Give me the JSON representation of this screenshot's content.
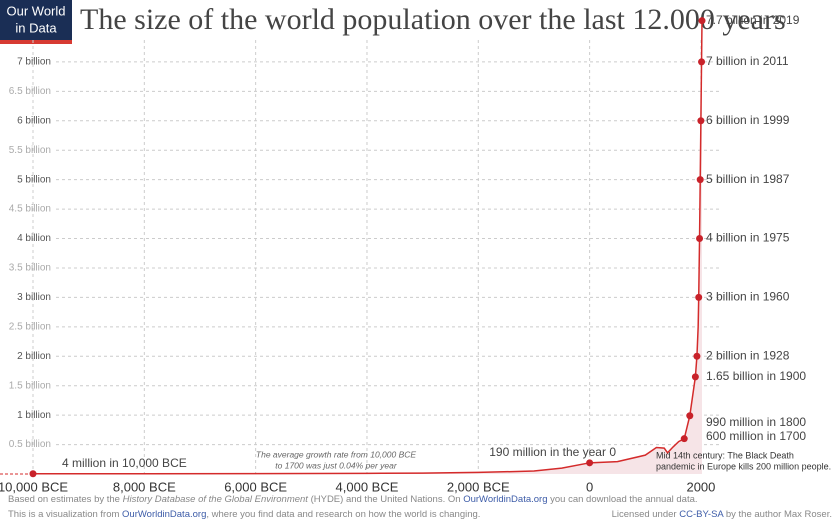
{
  "logo": [
    "Our World",
    "in Data"
  ],
  "chart_data": {
    "type": "line",
    "title": "The size of the world population over the last 12.000 years",
    "x": [
      -10000,
      -8000,
      -6000,
      -4000,
      -3000,
      -2000,
      -1000,
      -500,
      0,
      500,
      1000,
      1200,
      1340,
      1400,
      1500,
      1600,
      1700,
      1800,
      1900,
      1928,
      1950,
      1960,
      1975,
      1987,
      1999,
      2011,
      2019
    ],
    "series": [
      {
        "color": "#d42b2b",
        "values": [
          0.004,
          0.005,
          0.007,
          0.011,
          0.014,
          0.027,
          0.05,
          0.1,
          0.19,
          0.21,
          0.32,
          0.45,
          0.44,
          0.36,
          0.46,
          0.55,
          0.6,
          0.99,
          1.65,
          2,
          2.5,
          3,
          4,
          5,
          6,
          7,
          7.7
        ]
      }
    ],
    "markers": {
      "color": "#c8222a",
      "x": [
        -10000,
        0,
        1700,
        1800,
        1900,
        1928,
        1960,
        1975,
        1987,
        1999,
        2011,
        2019
      ],
      "values": [
        0.004,
        0.19,
        0.6,
        0.99,
        1.65,
        2,
        3,
        4,
        5,
        6,
        7,
        7.7
      ],
      "value_labels": [
        "4 million in 10,000 BCE",
        "190 million in the year 0",
        "600 million in 1700",
        "990 million in 1800",
        "1.65 billion in 1900",
        "2 billion in 1928",
        "3 billion in 1960",
        "4 billion in 1975",
        "5 billion in 1987",
        "6 billion in 1999",
        "7 billion in 2011",
        "7.7 billion in 2019"
      ]
    },
    "area_color": "#f6e4e7",
    "xlim": [
      -10000,
      2019
    ],
    "xticks": [
      {
        "value": -10000,
        "label": "10,000 BCE"
      },
      {
        "value": -8000,
        "label": "8,000 BCE"
      },
      {
        "value": -6000,
        "label": "6,000 BCE"
      },
      {
        "value": -4000,
        "label": "4,000 BCE"
      },
      {
        "value": -2000,
        "label": "2,000 BCE"
      },
      0,
      2000
    ],
    "ylim": [
      0,
      8
    ],
    "yticks": [
      {
        "value": 0.5,
        "label": "0.5 billion"
      },
      {
        "value": 1,
        "label": "1 billion"
      },
      {
        "value": 1.5,
        "label": "1.5 billion"
      },
      {
        "value": 2,
        "label": "2 billion"
      },
      {
        "value": 2.5,
        "label": "2.5 billion"
      },
      {
        "value": 3,
        "label": "3 billion"
      },
      {
        "value": 3.5,
        "label": "3.5 billion"
      },
      {
        "value": 4,
        "label": "4 billion"
      },
      {
        "value": 4.5,
        "label": "4.5 billion"
      },
      {
        "value": 5,
        "label": "5 billion"
      },
      {
        "value": 5.5,
        "label": "5.5 billion"
      },
      {
        "value": 6,
        "label": "6 billion"
      },
      {
        "value": 6.5,
        "label": "6.5 billion"
      },
      {
        "value": 7,
        "label": "7 billion"
      }
    ],
    "grid": true,
    "annotations": [
      [
        "The average growth rate from 10,000 BCE",
        "to 1700 was just  0.04% per year"
      ],
      [
        "Mid 14th century: The Black Death",
        "pandemic in Europe kills 200 million people."
      ]
    ]
  },
  "footer": {
    "line1": [
      "Based on estimates by the ",
      "History Database of the Global Environment",
      " (HYDE) and the United Nations. On ",
      "OurWorldinData.org",
      " you can download the annual data."
    ],
    "line2": [
      "This is a visualization from ",
      "OurWorldinData.org",
      ", where you find data and research on how the world is changing."
    ],
    "license": [
      "Licensed under ",
      "CC-BY-SA",
      " by the author Max Roser."
    ]
  }
}
